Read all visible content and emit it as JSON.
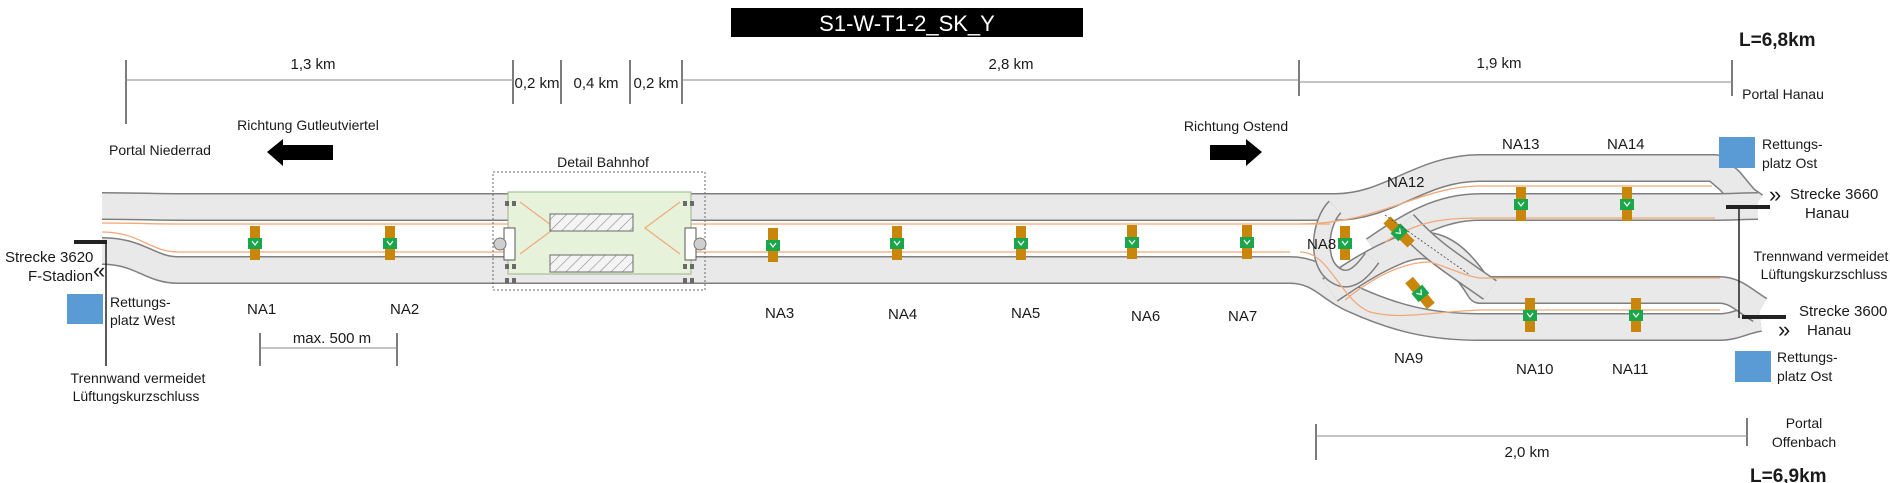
{
  "title": "S1-W-T1-2_SK_Y",
  "totals": {
    "upper": "L=6,8km",
    "lower": "L=6,9km"
  },
  "dimensions": {
    "d1": "1,3 km",
    "d2": "0,2 km",
    "d3": "0,4 km",
    "d4": "0,2 km",
    "d5": "2,8 km",
    "d6": "1,9 km",
    "d7": "2,0 km",
    "max_spacing": "max. 500 m"
  },
  "directions": {
    "west": "Richtung Gutleutviertel",
    "east": "Richtung Ostend"
  },
  "portals": {
    "niederrad": "Portal Niederrad",
    "hanau": "Portal Hanau",
    "offenbach_1": "Portal",
    "offenbach_2": "Offenbach"
  },
  "station_label": "Detail Bahnhof",
  "routes": {
    "west_1": "Strecke 3620",
    "west_2": "F-Stadion",
    "hanau_upper_1": "Strecke 3660",
    "hanau_upper_2": "Hanau",
    "hanau_lower_1": "Strecke 3600",
    "hanau_lower_2": "Hanau",
    "arrow_glyph": "«",
    "arrow_glyph_east": "»"
  },
  "rescue": {
    "west_1": "Rettungs-",
    "west_2": "platz West",
    "east_upper_1": "Rettungs-",
    "east_upper_2": "platz Ost",
    "east_lower_1": "Rettungs-",
    "east_lower_2": "platz Ost",
    "color": "#5b9bd5"
  },
  "partition": {
    "west_1": "Trennwand vermeidet",
    "west_2": "Lüftungskurzschluss",
    "east_1": "Trennwand vermeidet",
    "east_2": "Lüftungskurzschluss"
  },
  "cross_passages": [
    {
      "id": "NA1"
    },
    {
      "id": "NA2"
    },
    {
      "id": "NA3"
    },
    {
      "id": "NA4"
    },
    {
      "id": "NA5"
    },
    {
      "id": "NA6"
    },
    {
      "id": "NA7"
    },
    {
      "id": "NA8"
    },
    {
      "id": "NA9"
    },
    {
      "id": "NA10"
    },
    {
      "id": "NA11"
    },
    {
      "id": "NA12"
    },
    {
      "id": "NA13"
    },
    {
      "id": "NA14"
    }
  ],
  "colors": {
    "passage": "#c8860a",
    "exit_sign": "#1aa64a",
    "rail": "#f2a878",
    "tube": "#e9e9e9",
    "station": "#e6f2da"
  }
}
